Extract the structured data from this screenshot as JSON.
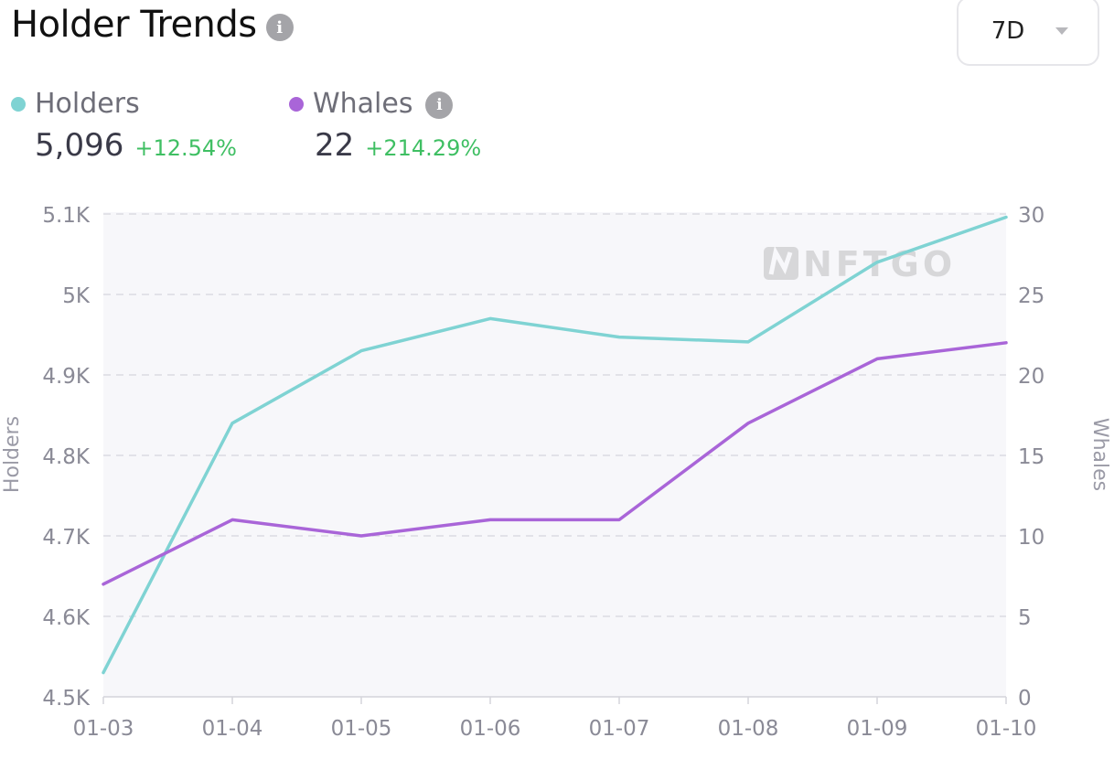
{
  "header": {
    "title": "Holder Trends",
    "info_icon": "info-icon",
    "range_selector": {
      "selected": "7D",
      "icon": "chevron-down-icon"
    }
  },
  "legend": {
    "holders": {
      "label": "Holders",
      "value": "5,096",
      "change": "+12.54%",
      "color": "#7fd3d3"
    },
    "whales": {
      "label": "Whales",
      "value": "22",
      "change": "+214.29%",
      "color": "#a965d8",
      "info_icon": "info-icon"
    }
  },
  "watermark": "NFTGO",
  "chart_data": {
    "type": "line",
    "x": [
      "01-03",
      "01-04",
      "01-05",
      "01-06",
      "01-07",
      "01-08",
      "01-09",
      "01-10"
    ],
    "series": [
      {
        "name": "Holders",
        "axis": "left",
        "color": "#7fd3d3",
        "values": [
          4530,
          4840,
          4930,
          4970,
          4947,
          4941,
          5040,
          5096
        ]
      },
      {
        "name": "Whales",
        "axis": "right",
        "color": "#a965d8",
        "values": [
          7,
          11,
          10,
          11,
          11,
          17,
          21,
          22
        ]
      }
    ],
    "ylabel": "Holders",
    "y2label": "Whales",
    "ylim": [
      4500,
      5100
    ],
    "y2lim": [
      0,
      30
    ],
    "yticks": [
      "4.5K",
      "4.6K",
      "4.7K",
      "4.8K",
      "4.9K",
      "5K",
      "5.1K"
    ],
    "y2ticks": [
      "0",
      "5",
      "10",
      "15",
      "20",
      "25",
      "30"
    ],
    "grid": true,
    "legend_position": "top-left"
  }
}
